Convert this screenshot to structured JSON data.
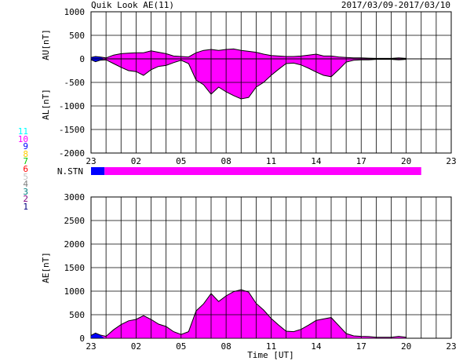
{
  "header": {
    "title": "Quik Look AE(11)",
    "date_range": "2017/03/09-2017/03/10"
  },
  "legend": {
    "items": [
      {
        "label": "11",
        "color": "#00ffff"
      },
      {
        "label": "10",
        "color": "#ff00ff"
      },
      {
        "label": "9",
        "color": "#0000ff"
      },
      {
        "label": "8",
        "color": "#ffcc00"
      },
      {
        "label": "7",
        "color": "#00cc00"
      },
      {
        "label": "6",
        "color": "#ff0000"
      },
      {
        "label": "5",
        "color": "#c0c0c0"
      },
      {
        "label": "4",
        "color": "#808080"
      },
      {
        "label": "3",
        "color": "#008080"
      },
      {
        "label": "2",
        "color": "#800080"
      },
      {
        "label": "1",
        "color": "#000080"
      }
    ]
  },
  "chart_data": [
    {
      "type": "area",
      "panel": "AU/AL",
      "ylabel_upper": "AU[nT]",
      "ylabel_lower": "AL[nT]",
      "ylim": [
        -2000,
        1000
      ],
      "yticks": [
        1000,
        500,
        0,
        -500,
        -1000,
        -1500,
        -2000
      ],
      "xlim": [
        0,
        24
      ],
      "xticks": [
        "23",
        "02",
        "05",
        "08",
        "11",
        "14",
        "17",
        "20",
        "23"
      ],
      "fill_color": "#ff00ff",
      "early_fill_color": "#0000ff",
      "series": [
        {
          "name": "AU",
          "x": [
            0.0,
            0.3,
            0.6,
            1.0,
            1.5,
            2.0,
            2.5,
            3.0,
            3.5,
            4.0,
            4.5,
            5.0,
            5.5,
            6.0,
            6.5,
            7.0,
            7.5,
            8.0,
            8.5,
            9.0,
            9.5,
            10.0,
            10.5,
            11.0,
            11.5,
            12.0,
            12.5,
            13.0,
            13.5,
            14.0,
            14.5,
            15.0,
            15.5,
            16.0,
            16.5,
            17.0,
            17.5,
            18.0,
            18.5,
            19.0,
            19.5,
            20.0,
            20.5,
            21.0
          ],
          "values": [
            30,
            50,
            40,
            20,
            80,
            110,
            120,
            130,
            130,
            170,
            140,
            110,
            60,
            50,
            40,
            130,
            180,
            200,
            180,
            200,
            210,
            180,
            160,
            140,
            100,
            70,
            60,
            50,
            50,
            60,
            80,
            100,
            60,
            60,
            40,
            30,
            20,
            20,
            15,
            10,
            10,
            10,
            20,
            10
          ]
        },
        {
          "name": "AL",
          "x": [
            0.0,
            0.3,
            0.6,
            1.0,
            1.5,
            2.0,
            2.5,
            3.0,
            3.5,
            4.0,
            4.5,
            5.0,
            5.5,
            6.0,
            6.5,
            7.0,
            7.5,
            8.0,
            8.5,
            9.0,
            9.5,
            10.0,
            10.5,
            11.0,
            11.5,
            12.0,
            12.5,
            13.0,
            13.5,
            14.0,
            14.5,
            15.0,
            15.5,
            16.0,
            16.5,
            17.0,
            17.5,
            18.0,
            18.5,
            19.0,
            19.5,
            20.0,
            20.5,
            21.0
          ],
          "values": [
            -20,
            -60,
            -30,
            -20,
            -100,
            -180,
            -250,
            -270,
            -350,
            -230,
            -160,
            -140,
            -80,
            -30,
            -100,
            -450,
            -550,
            -750,
            -600,
            -700,
            -780,
            -850,
            -820,
            -600,
            -500,
            -350,
            -220,
            -100,
            -90,
            -130,
            -200,
            -280,
            -350,
            -380,
            -230,
            -70,
            -30,
            -20,
            -20,
            -10,
            -10,
            -10,
            -20,
            -10
          ]
        }
      ]
    },
    {
      "type": "bar",
      "panel": "N.STN",
      "label": "N.STN",
      "segments": [
        {
          "x_start": 0.0,
          "x_end": 0.9,
          "stations": 9,
          "color": "#0000ff"
        },
        {
          "x_start": 0.9,
          "x_end": 22.0,
          "stations": 10,
          "color": "#ff00ff"
        }
      ]
    },
    {
      "type": "area",
      "panel": "AE",
      "ylabel": "AE[nT]",
      "xlabel": "Time [UT]",
      "ylim": [
        0,
        3000
      ],
      "yticks": [
        3000,
        2500,
        2000,
        1500,
        1000,
        500,
        0
      ],
      "xlim": [
        0,
        24
      ],
      "xticks": [
        "23",
        "02",
        "05",
        "08",
        "11",
        "14",
        "17",
        "20",
        "23"
      ],
      "fill_color": "#ff00ff",
      "early_fill_color": "#0000ff",
      "series": [
        {
          "name": "AE",
          "x": [
            0.0,
            0.3,
            0.6,
            1.0,
            1.5,
            2.0,
            2.5,
            3.0,
            3.5,
            4.0,
            4.5,
            5.0,
            5.5,
            6.0,
            6.5,
            7.0,
            7.5,
            8.0,
            8.5,
            9.0,
            9.5,
            10.0,
            10.5,
            11.0,
            11.5,
            12.0,
            12.5,
            13.0,
            13.5,
            14.0,
            14.5,
            15.0,
            15.5,
            16.0,
            16.5,
            17.0,
            17.5,
            18.0,
            18.5,
            19.0,
            19.5,
            20.0,
            20.5,
            21.0
          ],
          "values": [
            60,
            110,
            70,
            40,
            180,
            290,
            370,
            400,
            480,
            400,
            300,
            250,
            140,
            80,
            140,
            580,
            730,
            950,
            780,
            900,
            990,
            1030,
            980,
            740,
            600,
            420,
            280,
            150,
            140,
            190,
            280,
            380,
            410,
            440,
            270,
            100,
            50,
            40,
            35,
            20,
            20,
            20,
            40,
            20
          ]
        }
      ]
    }
  ]
}
